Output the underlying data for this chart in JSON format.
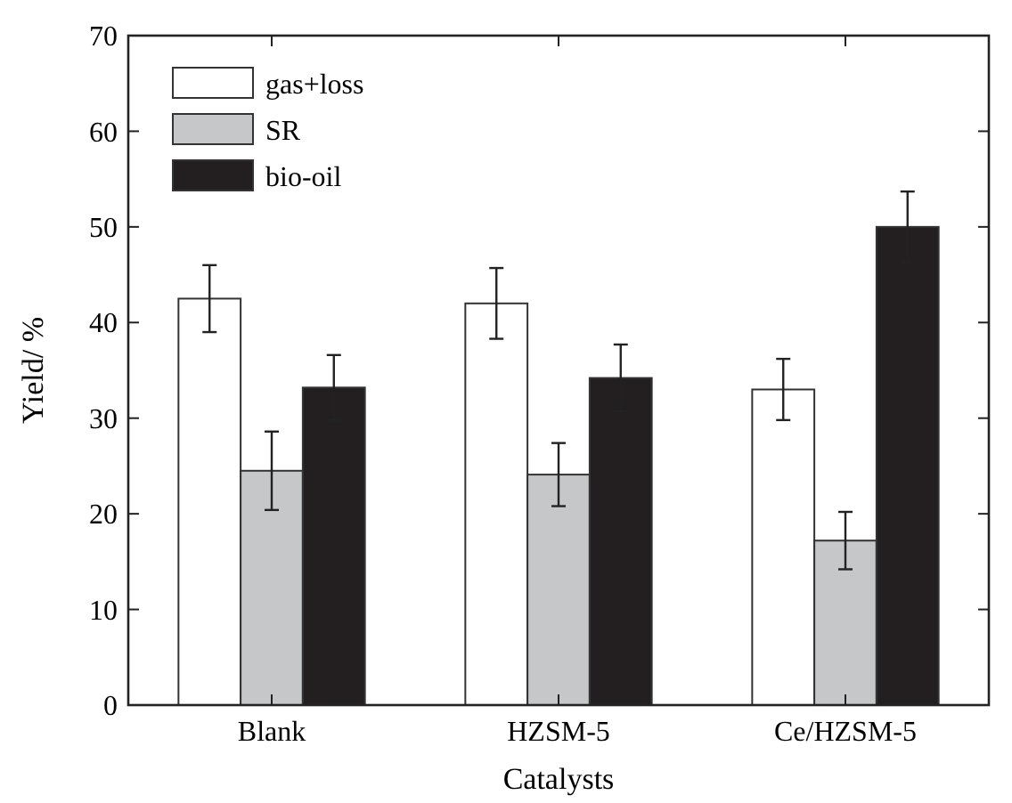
{
  "chart_data": {
    "type": "bar",
    "xlabel": "Catalysts",
    "ylabel": "Yield/ %",
    "categories": [
      "Blank",
      "HZSM-5",
      "Ce/HZSM-5"
    ],
    "series": [
      {
        "name": "gas+loss",
        "color": "#ffffff",
        "values": [
          42.5,
          42.0,
          33.0
        ],
        "errors": [
          3.5,
          3.7,
          3.2
        ]
      },
      {
        "name": "SR",
        "color": "#c6c7c9",
        "values": [
          24.5,
          24.1,
          17.2
        ],
        "errors": [
          4.1,
          3.3,
          3.0
        ]
      },
      {
        "name": "bio-oil",
        "color": "#231f20",
        "values": [
          33.2,
          34.2,
          50.0
        ],
        "errors": [
          3.4,
          3.5,
          3.7
        ]
      }
    ],
    "ylim": [
      0,
      70
    ],
    "yticks": [
      0,
      10,
      20,
      30,
      40,
      50,
      60,
      70
    ],
    "legend": "top left",
    "grid": false
  }
}
